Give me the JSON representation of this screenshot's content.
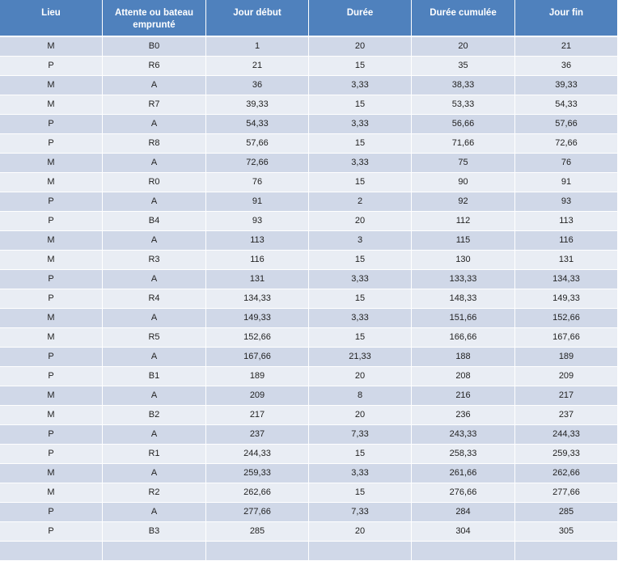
{
  "table": {
    "header": [
      "Lieu",
      "Attente ou bateau emprunté",
      "Jour début",
      "Durée",
      "Durée cumulée",
      "Jour fin"
    ],
    "rows": [
      [
        "M",
        "B0",
        "1",
        "20",
        "20",
        "21"
      ],
      [
        "P",
        "R6",
        "21",
        "15",
        "35",
        "36"
      ],
      [
        "M",
        "A",
        "36",
        "3,33",
        "38,33",
        "39,33"
      ],
      [
        "M",
        "R7",
        "39,33",
        "15",
        "53,33",
        "54,33"
      ],
      [
        "P",
        "A",
        "54,33",
        "3,33",
        "56,66",
        "57,66"
      ],
      [
        "P",
        "R8",
        "57,66",
        "15",
        "71,66",
        "72,66"
      ],
      [
        "M",
        "A",
        "72,66",
        "3,33",
        "75",
        "76"
      ],
      [
        "M",
        "R0",
        "76",
        "15",
        "90",
        "91"
      ],
      [
        "P",
        "A",
        "91",
        "2",
        "92",
        "93"
      ],
      [
        "P",
        "B4",
        "93",
        "20",
        "112",
        "113"
      ],
      [
        "M",
        "A",
        "113",
        "3",
        "115",
        "116"
      ],
      [
        "M",
        "R3",
        "116",
        "15",
        "130",
        "131"
      ],
      [
        "P",
        "A",
        "131",
        "3,33",
        "133,33",
        "134,33"
      ],
      [
        "P",
        "R4",
        "134,33",
        "15",
        "148,33",
        "149,33"
      ],
      [
        "M",
        "A",
        "149,33",
        "3,33",
        "151,66",
        "152,66"
      ],
      [
        "M",
        "R5",
        "152,66",
        "15",
        "166,66",
        "167,66"
      ],
      [
        "P",
        "A",
        "167,66",
        "21,33",
        "188",
        "189"
      ],
      [
        "P",
        "B1",
        "189",
        "20",
        "208",
        "209"
      ],
      [
        "M",
        "A",
        "209",
        "8",
        "216",
        "217"
      ],
      [
        "M",
        "B2",
        "217",
        "20",
        "236",
        "237"
      ],
      [
        "P",
        "A",
        "237",
        "7,33",
        "243,33",
        "244,33"
      ],
      [
        "P",
        "R1",
        "244,33",
        "15",
        "258,33",
        "259,33"
      ],
      [
        "M",
        "A",
        "259,33",
        "3,33",
        "261,66",
        "262,66"
      ],
      [
        "M",
        "R2",
        "262,66",
        "15",
        "276,66",
        "277,66"
      ],
      [
        "P",
        "A",
        "277,66",
        "7,33",
        "284",
        "285"
      ],
      [
        "P",
        "B3",
        "285",
        "20",
        "304",
        "305"
      ]
    ]
  }
}
